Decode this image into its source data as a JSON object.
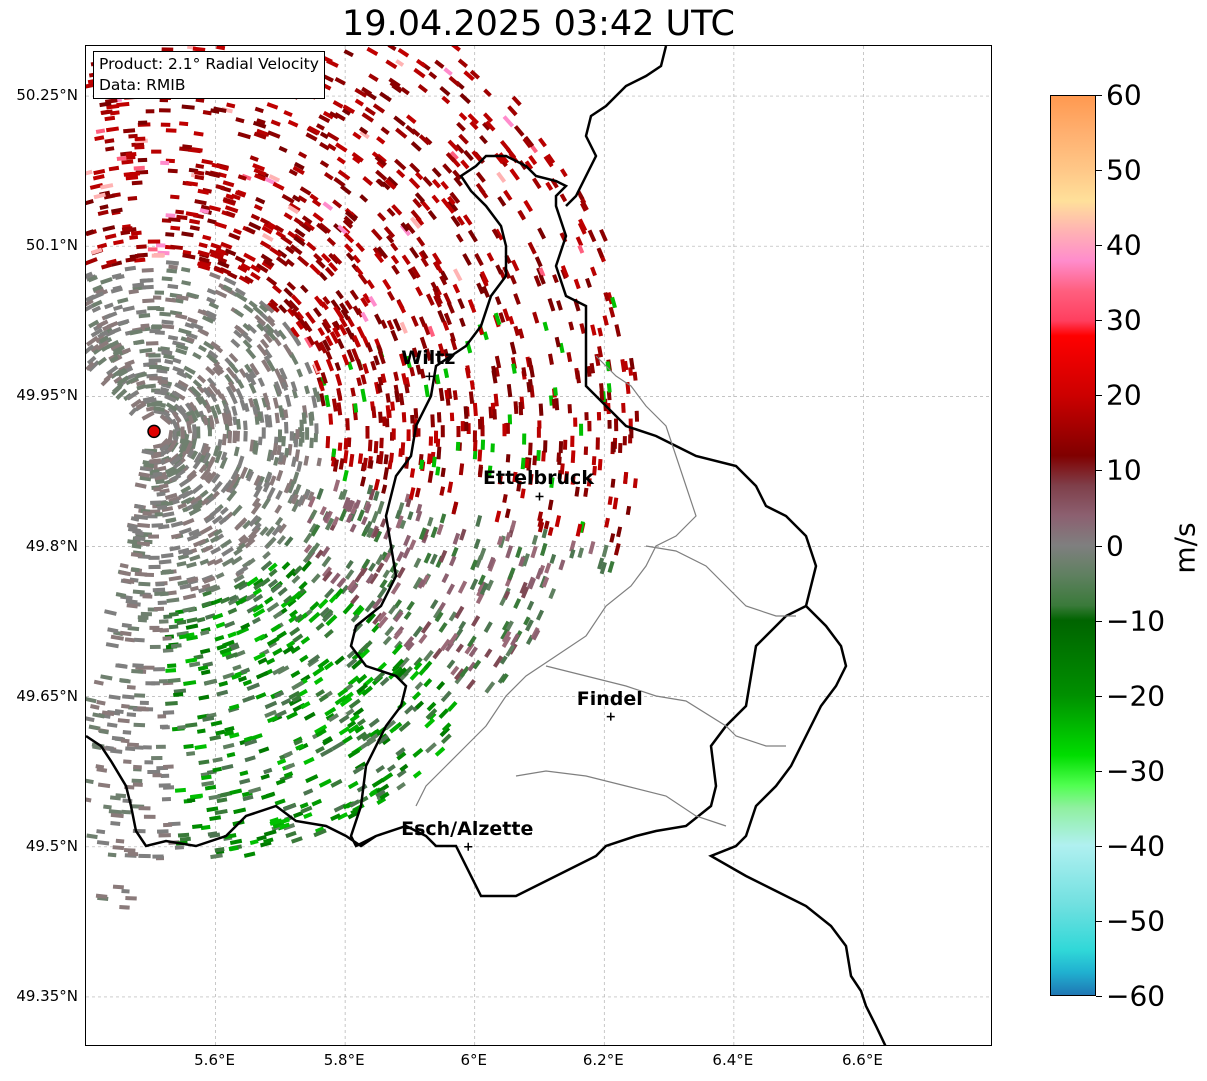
{
  "title": "19.04.2025 03:42 UTC",
  "info": {
    "product": "Product: 2.1° Radial Velocity",
    "data": "Data: RMIB"
  },
  "map": {
    "lon_range": [
      5.4,
      6.8
    ],
    "lat_range": [
      49.3,
      50.3
    ],
    "lat_ticks": [
      {
        "value": 50.25,
        "label": "50.25°N"
      },
      {
        "value": 50.1,
        "label": "50.1°N"
      },
      {
        "value": 49.95,
        "label": "49.95°N"
      },
      {
        "value": 49.8,
        "label": "49.8°N"
      },
      {
        "value": 49.65,
        "label": "49.65°N"
      },
      {
        "value": 49.5,
        "label": "49.5°N"
      },
      {
        "value": 49.35,
        "label": "49.35°N"
      }
    ],
    "lon_ticks": [
      {
        "value": 5.6,
        "label": "5.6°E"
      },
      {
        "value": 5.8,
        "label": "5.8°E"
      },
      {
        "value": 6.0,
        "label": "6°E"
      },
      {
        "value": 6.2,
        "label": "6.2°E"
      },
      {
        "value": 6.4,
        "label": "6.4°E"
      },
      {
        "value": 6.6,
        "label": "6.6°E"
      }
    ],
    "radar_site": {
      "lon": 5.505,
      "lat": 49.915
    },
    "cities": [
      {
        "name": "Wiltz",
        "lon": 5.93,
        "lat": 49.97
      },
      {
        "name": "Ettelbruck",
        "lon": 6.1,
        "lat": 49.85
      },
      {
        "name": "Findel",
        "lon": 6.21,
        "lat": 49.63
      },
      {
        "name": "Esch/Alzette",
        "lon": 5.99,
        "lat": 49.5
      }
    ]
  },
  "colorbar": {
    "label": "m/s",
    "min": -60,
    "max": 60,
    "ticks": [
      {
        "value": 60,
        "label": "60"
      },
      {
        "value": 50,
        "label": "50"
      },
      {
        "value": 40,
        "label": "40"
      },
      {
        "value": 30,
        "label": "30"
      },
      {
        "value": 20,
        "label": "20"
      },
      {
        "value": 10,
        "label": "10"
      },
      {
        "value": 0,
        "label": "0"
      },
      {
        "value": -10,
        "label": "−10"
      },
      {
        "value": -20,
        "label": "−20"
      },
      {
        "value": -30,
        "label": "−30"
      },
      {
        "value": -40,
        "label": "−40"
      },
      {
        "value": -50,
        "label": "−50"
      },
      {
        "value": -60,
        "label": "−60"
      }
    ],
    "stops": [
      {
        "v": 60,
        "c": "#ff9950"
      },
      {
        "v": 55,
        "c": "#ffb070"
      },
      {
        "v": 50,
        "c": "#ffc888"
      },
      {
        "v": 46,
        "c": "#ffe09a"
      },
      {
        "v": 42,
        "c": "#ffb3b3"
      },
      {
        "v": 38,
        "c": "#ff8ccc"
      },
      {
        "v": 34,
        "c": "#ff5f7f"
      },
      {
        "v": 30,
        "c": "#ff3f5f"
      },
      {
        "v": 28,
        "c": "#ff0000"
      },
      {
        "v": 20,
        "c": "#cc0000"
      },
      {
        "v": 12,
        "c": "#800000"
      },
      {
        "v": 8,
        "c": "#7f3f4a"
      },
      {
        "v": 4,
        "c": "#8c6070"
      },
      {
        "v": 0,
        "c": "#7f7f7f"
      },
      {
        "v": -4,
        "c": "#5f8060"
      },
      {
        "v": -8,
        "c": "#3a7a3a"
      },
      {
        "v": -10,
        "c": "#006400"
      },
      {
        "v": -20,
        "c": "#009000"
      },
      {
        "v": -28,
        "c": "#00dd00"
      },
      {
        "v": -32,
        "c": "#50ff50"
      },
      {
        "v": -35,
        "c": "#90f0a0"
      },
      {
        "v": -40,
        "c": "#b0f0f0"
      },
      {
        "v": -48,
        "c": "#70e0e0"
      },
      {
        "v": -54,
        "c": "#30d8d8"
      },
      {
        "v": -57,
        "c": "#20b0d0"
      },
      {
        "v": -60,
        "c": "#1f77b4"
      }
    ]
  }
}
